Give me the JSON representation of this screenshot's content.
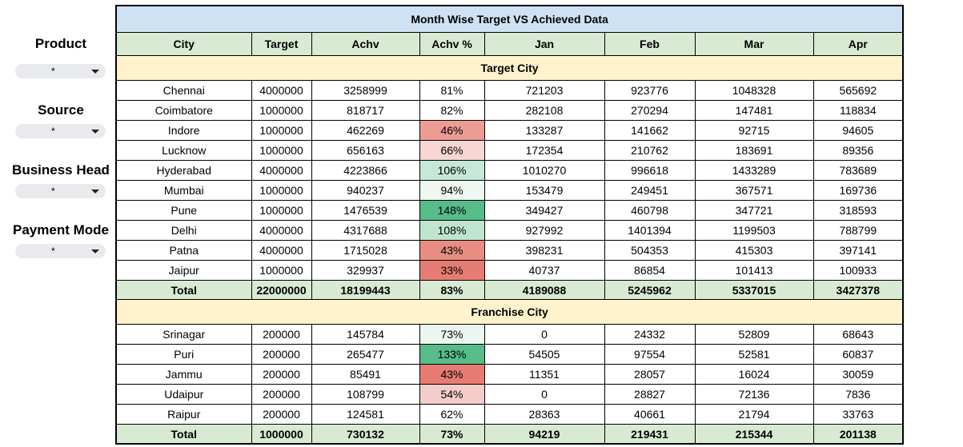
{
  "filters": [
    {
      "label": "Product",
      "value": "*"
    },
    {
      "label": "Source",
      "value": "*"
    },
    {
      "label": "Business Head",
      "value": "*"
    },
    {
      "label": "Payment Mode",
      "value": "*"
    }
  ],
  "table": {
    "title": "Month Wise Target VS Achieved Data",
    "headers": [
      "City",
      "Target",
      "Achv",
      "Achv %",
      "Jan",
      "Feb",
      "Mar",
      "Apr"
    ],
    "sections": [
      {
        "name": "Target City",
        "rows": [
          {
            "cells": [
              "Chennai",
              "4000000",
              "3258999",
              "81%",
              "721203",
              "923776",
              "1048328",
              "565692"
            ],
            "pct_color": ""
          },
          {
            "cells": [
              "Coimbatore",
              "1000000",
              "818717",
              "82%",
              "282108",
              "270294",
              "147481",
              "118834"
            ],
            "pct_color": ""
          },
          {
            "cells": [
              "Indore",
              "1000000",
              "462269",
              "46%",
              "133287",
              "141662",
              "92715",
              "94605"
            ],
            "pct_color": "#ec9c93"
          },
          {
            "cells": [
              "Lucknow",
              "1000000",
              "656163",
              "66%",
              "172354",
              "210762",
              "183691",
              "89356"
            ],
            "pct_color": "#f7d6d3"
          },
          {
            "cells": [
              "Hyderabad",
              "4000000",
              "4223866",
              "106%",
              "1010270",
              "996618",
              "1433289",
              "783689"
            ],
            "pct_color": "#c6e8d6"
          },
          {
            "cells": [
              "Mumbai",
              "1000000",
              "940237",
              "94%",
              "153479",
              "249451",
              "367571",
              "169736"
            ],
            "pct_color": "#eef7f1"
          },
          {
            "cells": [
              "Pune",
              "1000000",
              "1476539",
              "148%",
              "349427",
              "460798",
              "347721",
              "318593"
            ],
            "pct_color": "#57bb8a"
          },
          {
            "cells": [
              "Delhi",
              "4000000",
              "4317688",
              "108%",
              "927992",
              "1401394",
              "1199503",
              "788799"
            ],
            "pct_color": "#bfe5d0"
          },
          {
            "cells": [
              "Patna",
              "4000000",
              "1715028",
              "43%",
              "398231",
              "504353",
              "415303",
              "397141"
            ],
            "pct_color": "#e98d82"
          },
          {
            "cells": [
              "Jaipur",
              "1000000",
              "329937",
              "33%",
              "40737",
              "86854",
              "101413",
              "100933"
            ],
            "pct_color": "#e67c73"
          }
        ],
        "total": [
          "Total",
          "22000000",
          "18199443",
          "83%",
          "4189088",
          "5245962",
          "5337015",
          "3427378"
        ]
      },
      {
        "name": "Franchise City",
        "rows": [
          {
            "cells": [
              "Srinagar",
              "200000",
              "145784",
              "73%",
              "0",
              "24332",
              "52809",
              "68643"
            ],
            "pct_color": "#eaf6ef"
          },
          {
            "cells": [
              "Puri",
              "200000",
              "265477",
              "133%",
              "54505",
              "97554",
              "52581",
              "60837"
            ],
            "pct_color": "#57bb8a"
          },
          {
            "cells": [
              "Jammu",
              "200000",
              "85491",
              "43%",
              "11351",
              "28057",
              "16024",
              "30059"
            ],
            "pct_color": "#e67c73"
          },
          {
            "cells": [
              "Udaipur",
              "200000",
              "108799",
              "54%",
              "0",
              "28827",
              "72136",
              "7836"
            ],
            "pct_color": "#f4cdc9"
          },
          {
            "cells": [
              "Raipur",
              "200000",
              "124581",
              "62%",
              "28363",
              "40661",
              "21794",
              "33763"
            ],
            "pct_color": ""
          }
        ],
        "total": [
          "Total",
          "1000000",
          "730132",
          "73%",
          "94219",
          "219431",
          "215344",
          "201138"
        ]
      }
    ]
  }
}
